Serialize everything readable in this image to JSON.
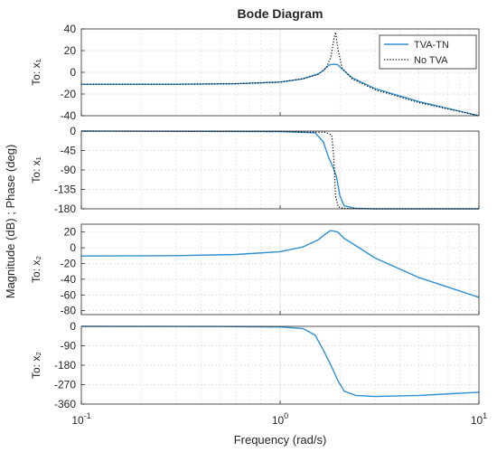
{
  "title": "Bode Diagram",
  "xlabel": "Frequency  (rad/s)",
  "ylabel": "Magnitude (dB) ; Phase (deg)",
  "colors": {
    "tva_tn": "#2f8fd0",
    "no_tva": "#000000",
    "grid": "#d9d9d9",
    "axes": "#262626"
  },
  "legend": {
    "placement": "top-right",
    "entries": [
      "TVA-TN",
      "No TVA"
    ]
  },
  "chart_data": [
    {
      "type": "line",
      "row_label": "To: x₁",
      "quantity": "magnitude (dB)",
      "xscale": "log",
      "xlim": [
        0.1,
        10
      ],
      "ylim": [
        -40,
        40
      ],
      "yticks": [
        -40,
        -20,
        0,
        20,
        40
      ],
      "grid": true,
      "series": [
        {
          "name": "TVA-TN",
          "style": "solid",
          "x": [
            0.1,
            0.3,
            0.6,
            1.0,
            1.3,
            1.55,
            1.65,
            1.75,
            1.85,
            1.95,
            2.05,
            2.3,
            3.0,
            5.0,
            10.0
          ],
          "y": [
            -11,
            -11,
            -10.5,
            -9,
            -6,
            -1.5,
            1.5,
            6.5,
            7.5,
            7,
            3,
            -5,
            -15,
            -27,
            -40
          ]
        },
        {
          "name": "No TVA",
          "style": "dotted",
          "x": [
            0.1,
            0.3,
            0.6,
            1.0,
            1.3,
            1.55,
            1.7,
            1.8,
            1.86,
            1.9,
            1.95,
            2.05,
            2.3,
            3.0,
            5.0,
            10.0
          ],
          "y": [
            -11,
            -11,
            -10.5,
            -9,
            -6,
            -2,
            4,
            14,
            30,
            37,
            22,
            4,
            -6,
            -16,
            -28,
            -40
          ]
        }
      ]
    },
    {
      "type": "line",
      "row_label": "To: x₁",
      "quantity": "phase (deg)",
      "xscale": "log",
      "xlim": [
        0.1,
        10
      ],
      "ylim": [
        -180,
        0
      ],
      "yticks": [
        -180,
        -135,
        -90,
        -45,
        0
      ],
      "grid": true,
      "series": [
        {
          "name": "TVA-TN",
          "style": "solid",
          "x": [
            0.1,
            1.0,
            1.5,
            1.65,
            1.75,
            1.85,
            1.92,
            2.0,
            2.1,
            2.4,
            3.0,
            5.0,
            10.0
          ],
          "y": [
            0,
            -1,
            -4,
            -25,
            -60,
            -85,
            -105,
            -150,
            -173,
            -179,
            -180,
            -180,
            -180
          ]
        },
        {
          "name": "No TVA",
          "style": "dotted",
          "x": [
            0.1,
            1.0,
            1.7,
            1.82,
            1.86,
            1.9,
            1.96,
            2.1,
            3.0,
            10.0
          ],
          "y": [
            0,
            -1,
            -3,
            -10,
            -60,
            -150,
            -176,
            -179,
            -180,
            -180
          ]
        }
      ]
    },
    {
      "type": "line",
      "row_label": "To: x₂",
      "quantity": "magnitude (dB)",
      "xscale": "log",
      "xlim": [
        0.1,
        10
      ],
      "ylim": [
        -85,
        30
      ],
      "yticks": [
        -80,
        -60,
        -40,
        -20,
        0,
        20
      ],
      "grid": true,
      "series": [
        {
          "name": "TVA-TN",
          "style": "solid",
          "x": [
            0.1,
            0.3,
            0.6,
            1.0,
            1.3,
            1.55,
            1.7,
            1.8,
            1.95,
            2.1,
            2.5,
            3.0,
            5.0,
            10.0
          ],
          "y": [
            -10.5,
            -10,
            -8.5,
            -5,
            1,
            10,
            18,
            22,
            20,
            12,
            0,
            -13,
            -38,
            -63
          ]
        }
      ]
    },
    {
      "type": "line",
      "row_label": "To: x₂",
      "quantity": "phase (deg)",
      "xscale": "log",
      "xlim": [
        0.1,
        10
      ],
      "ylim": [
        -360,
        0
      ],
      "yticks": [
        -360,
        -270,
        -180,
        -90,
        0
      ],
      "grid": true,
      "series": [
        {
          "name": "TVA-TN",
          "style": "solid",
          "x": [
            0.1,
            0.5,
            1.0,
            1.3,
            1.5,
            1.65,
            1.8,
            1.95,
            2.1,
            2.4,
            3.0,
            5.0,
            10.0
          ],
          "y": [
            0,
            -1,
            -3,
            -10,
            -40,
            -110,
            -180,
            -250,
            -300,
            -320,
            -325,
            -320,
            -305
          ]
        }
      ]
    }
  ],
  "xticks": [
    {
      "base": "10",
      "exp": "-1"
    },
    {
      "base": "10",
      "exp": "0"
    },
    {
      "base": "10",
      "exp": "1"
    }
  ]
}
